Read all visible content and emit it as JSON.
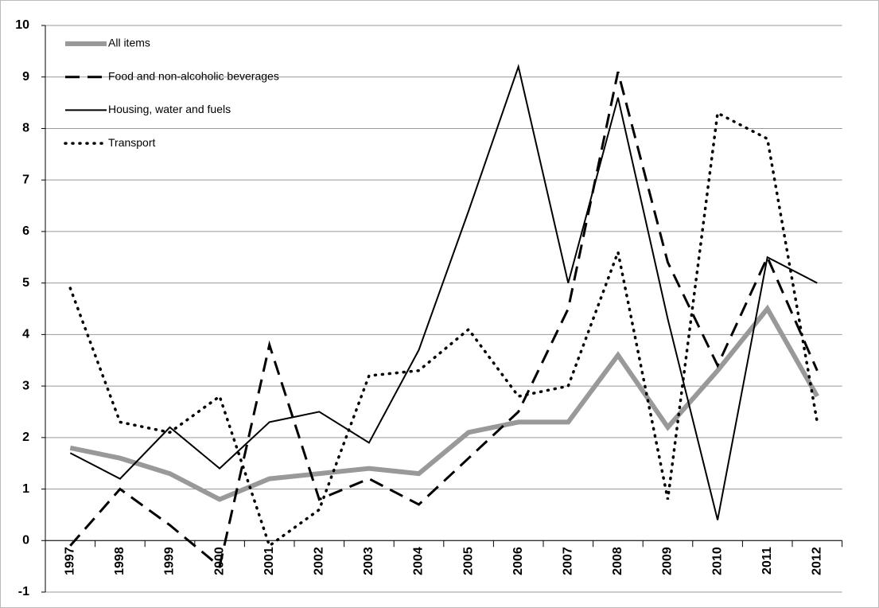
{
  "chart_data": {
    "type": "line",
    "categories": [
      "1997",
      "1998",
      "1999",
      "2000",
      "2001",
      "2002",
      "2003",
      "2004",
      "2005",
      "2006",
      "2007",
      "2008",
      "2009",
      "2010",
      "2011",
      "2012"
    ],
    "series": [
      {
        "name": "All items",
        "color": "#999999",
        "linestyle": "solid",
        "values": [
          1.8,
          1.6,
          1.3,
          0.8,
          1.2,
          1.3,
          1.4,
          1.3,
          2.1,
          2.3,
          2.3,
          3.6,
          2.2,
          3.3,
          4.5,
          2.8
        ]
      },
      {
        "name": "Food and non-alcoholic beverages",
        "color": "#000000",
        "linestyle": "dashed",
        "values": [
          -0.1,
          1.0,
          0.3,
          -0.5,
          3.8,
          0.8,
          1.2,
          0.7,
          1.6,
          2.5,
          4.5,
          9.1,
          5.4,
          3.4,
          5.5,
          3.3
        ]
      },
      {
        "name": "Housing, water and fuels",
        "color": "#000000",
        "linestyle": "solid",
        "values": [
          1.7,
          1.2,
          2.2,
          1.4,
          2.3,
          2.5,
          1.9,
          3.7,
          6.4,
          9.2,
          5.0,
          8.6,
          4.3,
          0.4,
          5.5,
          5.0
        ]
      },
      {
        "name": "Transport",
        "color": "#000000",
        "linestyle": "dotted",
        "values": [
          4.9,
          2.3,
          2.1,
          2.8,
          -0.1,
          0.6,
          3.2,
          3.3,
          4.1,
          2.8,
          3.0,
          5.6,
          0.8,
          8.3,
          7.8,
          2.3
        ]
      }
    ],
    "ylim": [
      -1,
      10
    ],
    "yticks": [
      -1,
      0,
      1,
      2,
      3,
      4,
      5,
      6,
      7,
      8,
      9,
      10
    ],
    "grid": true,
    "legend": "top-left"
  }
}
